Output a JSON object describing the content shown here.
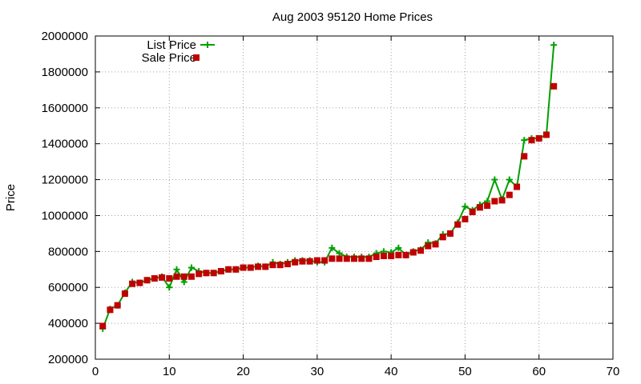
{
  "chart_data": {
    "type": "line",
    "title": "Aug 2003 95120 Home Prices",
    "xlabel": "",
    "ylabel": "Price",
    "xlim": [
      0,
      70
    ],
    "ylim": [
      200000,
      2000000
    ],
    "xticks": [
      0,
      10,
      20,
      30,
      40,
      50,
      60,
      70
    ],
    "yticks": [
      200000,
      400000,
      600000,
      800000,
      1000000,
      1200000,
      1400000,
      1600000,
      1800000,
      2000000
    ],
    "grid": true,
    "legend_position": "top-left",
    "series": [
      {
        "name": "List Price",
        "color": "#00a000",
        "marker": "plus",
        "line": true,
        "x": [
          1,
          2,
          3,
          4,
          5,
          6,
          7,
          8,
          9,
          10,
          11,
          12,
          13,
          14,
          15,
          16,
          17,
          18,
          19,
          20,
          21,
          22,
          23,
          24,
          25,
          26,
          27,
          28,
          29,
          30,
          31,
          32,
          33,
          34,
          35,
          36,
          37,
          38,
          39,
          40,
          41,
          42,
          43,
          44,
          45,
          46,
          47,
          48,
          49,
          50,
          51,
          52,
          53,
          54,
          55,
          56,
          57,
          58,
          59,
          60,
          61,
          62
        ],
        "values": [
          370000,
          480000,
          500000,
          570000,
          630000,
          625000,
          640000,
          650000,
          660000,
          600000,
          700000,
          630000,
          710000,
          690000,
          680000,
          680000,
          690000,
          700000,
          700000,
          710000,
          710000,
          720000,
          715000,
          740000,
          730000,
          740000,
          750000,
          750000,
          750000,
          740000,
          740000,
          820000,
          790000,
          770000,
          770000,
          770000,
          770000,
          790000,
          800000,
          795000,
          820000,
          780000,
          800000,
          810000,
          850000,
          845000,
          895000,
          900000,
          960000,
          1050000,
          1030000,
          1060000,
          1080000,
          1200000,
          1090000,
          1200000,
          1160000,
          1420000,
          1430000,
          1430000,
          1450000,
          1950000
        ]
      },
      {
        "name": "Sale Price",
        "color": "#c00000",
        "marker": "square",
        "line": false,
        "x": [
          1,
          2,
          3,
          4,
          5,
          6,
          7,
          8,
          9,
          10,
          11,
          12,
          13,
          14,
          15,
          16,
          17,
          18,
          19,
          20,
          21,
          22,
          23,
          24,
          25,
          26,
          27,
          28,
          29,
          30,
          31,
          32,
          33,
          34,
          35,
          36,
          37,
          38,
          39,
          40,
          41,
          42,
          43,
          44,
          45,
          46,
          47,
          48,
          49,
          50,
          51,
          52,
          53,
          54,
          55,
          56,
          57,
          58,
          59,
          60,
          61,
          62
        ],
        "values": [
          385000,
          475000,
          500000,
          565000,
          620000,
          625000,
          640000,
          650000,
          655000,
          650000,
          660000,
          660000,
          660000,
          675000,
          680000,
          680000,
          690000,
          700000,
          700000,
          710000,
          710000,
          715000,
          715000,
          725000,
          725000,
          730000,
          740000,
          745000,
          745000,
          750000,
          750000,
          760000,
          760000,
          760000,
          760000,
          760000,
          760000,
          770000,
          775000,
          775000,
          780000,
          780000,
          795000,
          805000,
          830000,
          840000,
          880000,
          900000,
          950000,
          980000,
          1020000,
          1045000,
          1055000,
          1080000,
          1085000,
          1115000,
          1160000,
          1330000,
          1420000,
          1430000,
          1450000,
          1720000
        ]
      }
    ]
  }
}
